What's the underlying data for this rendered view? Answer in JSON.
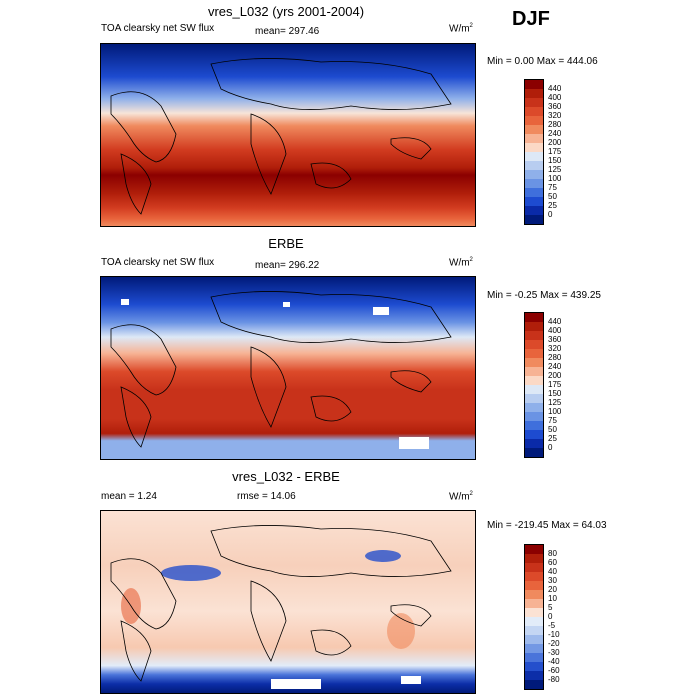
{
  "season": "DJF",
  "panels": [
    {
      "title": "vres_L032 (yrs 2001-2004)",
      "left_label": "TOA clearsky net SW flux",
      "center_label": "mean= 297.46",
      "units_base": "W/m",
      "units_exp": "2",
      "minmax": "Min =   0.00 Max = 444.06"
    },
    {
      "title": "ERBE",
      "left_label": "TOA clearsky net SW flux",
      "center_label": "mean= 296.22",
      "units_base": "W/m",
      "units_exp": "2",
      "minmax": "Min =  -0.25 Max = 439.25"
    },
    {
      "title": "vres_L032 - ERBE",
      "left_label": "mean =   1.24",
      "center_label": "rmse =  14.06",
      "units_base": "W/m",
      "units_exp": "2",
      "minmax": "Min = -219.45 Max =  64.03"
    }
  ],
  "colorbar_abs": {
    "labels": [
      "440",
      "400",
      "360",
      "320",
      "280",
      "240",
      "200",
      "175",
      "150",
      "125",
      "100",
      "75",
      "50",
      "25",
      "0"
    ],
    "colors": [
      "#8b0000",
      "#b01e0a",
      "#c8321a",
      "#dc4a2a",
      "#e8643c",
      "#f08a5e",
      "#f7b394",
      "#fbd9c6",
      "#dde8f6",
      "#b8cdf0",
      "#8fb0ea",
      "#6a93e4",
      "#3f6fdc",
      "#1d4bd0",
      "#0a2aa8",
      "#001a7a"
    ]
  },
  "colorbar_diff": {
    "labels": [
      "80",
      "60",
      "40",
      "30",
      "20",
      "10",
      "5",
      "0",
      "-5",
      "-10",
      "-20",
      "-30",
      "-40",
      "-60",
      "-80"
    ],
    "colors": [
      "#8b0000",
      "#b01e0a",
      "#c8321a",
      "#dc4a2a",
      "#e8643c",
      "#f08a5e",
      "#f7b394",
      "#fbe2d4",
      "#e2ecf9",
      "#c4d6f3",
      "#9ebaec",
      "#7398e4",
      "#4a74da",
      "#244fcc",
      "#0c2ea8",
      "#001a7a"
    ]
  }
}
